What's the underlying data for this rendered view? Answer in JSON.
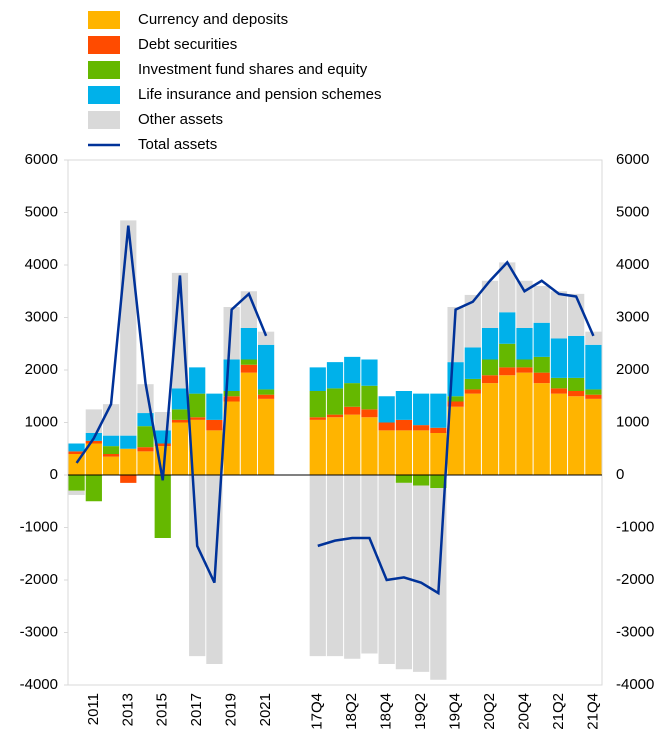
{
  "chart_data": {
    "type": "bar",
    "categories": [
      null,
      "2011",
      null,
      "2013",
      null,
      "2015",
      null,
      "2017",
      null,
      "2019",
      null,
      "2021",
      null,
      null,
      "17Q4",
      null,
      "18Q2",
      null,
      "18Q4",
      null,
      "19Q2",
      null,
      "19Q4",
      null,
      "20Q2",
      null,
      "20Q4",
      null,
      "21Q2",
      null,
      "21Q4"
    ],
    "series": [
      {
        "name": "Currency and deposits",
        "color": "#ffb400",
        "values": [
          400,
          600,
          350,
          500,
          450,
          550,
          1000,
          1050,
          850,
          1400,
          1950,
          1450,
          null,
          null,
          1050,
          1100,
          1150,
          1100,
          850,
          850,
          850,
          800,
          1300,
          1550,
          1750,
          1900,
          1950,
          1750,
          1550,
          1500,
          1450
        ]
      },
      {
        "name": "Debt securities",
        "color": "#ff4b00",
        "values": [
          50,
          50,
          50,
          -150,
          80,
          50,
          50,
          50,
          200,
          100,
          150,
          80,
          null,
          null,
          50,
          50,
          150,
          150,
          150,
          200,
          100,
          100,
          100,
          80,
          150,
          150,
          100,
          200,
          100,
          100,
          80
        ]
      },
      {
        "name": "Investment fund shares and equity",
        "color": "#65b800",
        "values": [
          -300,
          -500,
          150,
          0,
          400,
          -1200,
          200,
          450,
          0,
          100,
          100,
          100,
          null,
          null,
          500,
          500,
          450,
          450,
          0,
          -150,
          -200,
          -250,
          100,
          200,
          300,
          450,
          150,
          300,
          200,
          250,
          100
        ]
      },
      {
        "name": "Life insurance and pension schemes",
        "color": "#00b1ea",
        "values": [
          150,
          150,
          200,
          250,
          250,
          250,
          400,
          500,
          500,
          600,
          600,
          850,
          null,
          null,
          450,
          500,
          500,
          500,
          500,
          550,
          600,
          650,
          650,
          600,
          600,
          600,
          600,
          650,
          750,
          800,
          850
        ]
      },
      {
        "name": "Other assets",
        "color": "#d9d9d9",
        "values": [
          -80,
          450,
          600,
          4100,
          550,
          350,
          2200,
          -3450,
          -3600,
          1000,
          700,
          250,
          null,
          null,
          -3450,
          -3450,
          -3500,
          -3400,
          -3600,
          -3550,
          -3550,
          -3650,
          1050,
          1000,
          900,
          950,
          900,
          700,
          900,
          800,
          250
        ]
      },
      {
        "name": "Total assets",
        "color": "#003299",
        "kind": "line",
        "values": [
          230,
          700,
          1350,
          4750,
          1750,
          -100,
          3800,
          -1350,
          -2050,
          3150,
          3450,
          2650,
          null,
          null,
          -1350,
          -1250,
          -1200,
          -1200,
          -2000,
          -1950,
          -2050,
          -2250,
          3150,
          3300,
          3700,
          4050,
          3500,
          3700,
          3450,
          3400,
          2650
        ]
      }
    ],
    "ylim": [
      -4000,
      6000
    ],
    "yticks": [
      -4000,
      -3000,
      -2000,
      -1000,
      0,
      1000,
      2000,
      3000,
      4000,
      5000,
      6000
    ]
  }
}
